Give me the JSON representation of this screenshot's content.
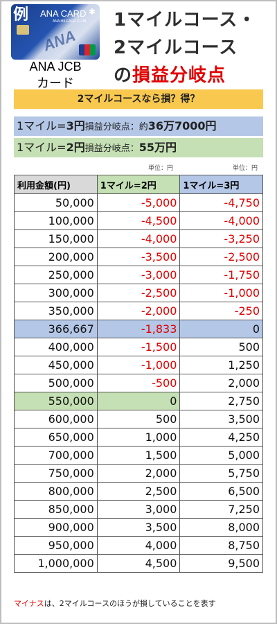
{
  "card": {
    "example_mark": "例",
    "brand": "ANA CARD",
    "club": "ANA MILEAGE CLUB",
    "logo": "ANA",
    "label_line1": "ANA JCB",
    "label_line2": "カード"
  },
  "title": {
    "line1": "1マイルコース・",
    "line2": "2マイルコース",
    "line3_prefix": "の",
    "line3_red": "損益分岐点"
  },
  "banner": "2マイルコースなら損？得？",
  "breakeven": {
    "blue_prefix": "1マイル=",
    "blue_bold": "3円",
    "blue_mid": "損益分岐点：約",
    "blue_value": "36万7000円",
    "green_prefix": "1マイル=",
    "green_bold": "2円",
    "green_mid": "損益分岐点：",
    "green_value": "55万円"
  },
  "unit_label": "単位：円",
  "table": {
    "headers": [
      "利用金額(円)",
      "1マイル=2円",
      "1マイル=3円"
    ],
    "rows": [
      [
        "50,000",
        "-5,000",
        "-4,750"
      ],
      [
        "100,000",
        "-4,500",
        "-4,000"
      ],
      [
        "150,000",
        "-4,000",
        "-3,250"
      ],
      [
        "200,000",
        "-3,500",
        "-2,500"
      ],
      [
        "250,000",
        "-3,000",
        "-1,750"
      ],
      [
        "300,000",
        "-2,500",
        "-1,000"
      ],
      [
        "350,000",
        "-2,000",
        "-250"
      ],
      [
        "366,667",
        "-1,833",
        "0"
      ],
      [
        "400,000",
        "-1,500",
        "500"
      ],
      [
        "450,000",
        "-1,000",
        "1,250"
      ],
      [
        "500,000",
        "-500",
        "2,000"
      ],
      [
        "550,000",
        "0",
        "2,750"
      ],
      [
        "600,000",
        "500",
        "3,500"
      ],
      [
        "650,000",
        "1,000",
        "4,250"
      ],
      [
        "700,000",
        "1,500",
        "5,000"
      ],
      [
        "750,000",
        "2,000",
        "5,750"
      ],
      [
        "800,000",
        "2,500",
        "6,500"
      ],
      [
        "850,000",
        "3,000",
        "7,250"
      ],
      [
        "900,000",
        "3,500",
        "8,000"
      ],
      [
        "950,000",
        "4,000",
        "8,750"
      ],
      [
        "1,000,000",
        "4,500",
        "9,500"
      ]
    ]
  },
  "note": {
    "red": "マイナス",
    "rest": "は、2マイルコースのほうが損していることを表す"
  },
  "colors": {
    "negative": "#e00000",
    "highlight_blue": "#b4c7e7",
    "highlight_green": "#c5e0b4",
    "banner": "#f9c94f"
  }
}
